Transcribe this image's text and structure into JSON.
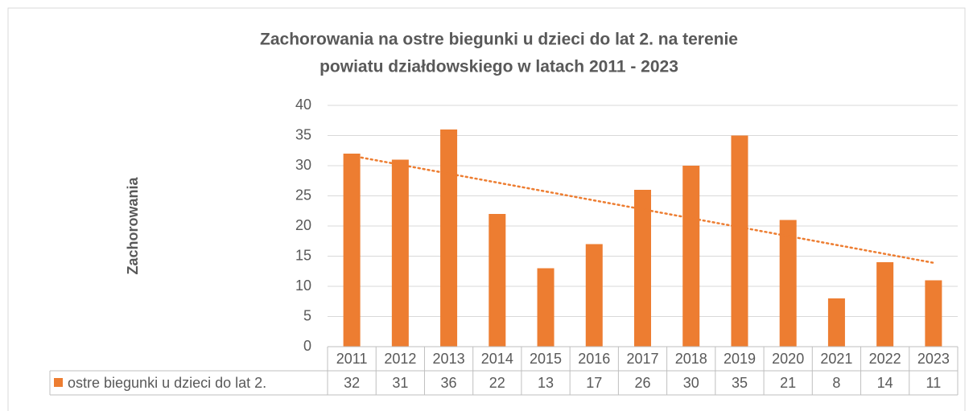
{
  "chart_data": {
    "type": "bar",
    "title": [
      "Zachorowania na ostre biegunki u dzieci do lat 2. na terenie",
      "powiatu działdowskiego w latach 2011 - 2023"
    ],
    "y_label": "Zachorowania",
    "categories": [
      "2011",
      "2012",
      "2013",
      "2014",
      "2015",
      "2016",
      "2017",
      "2018",
      "2019",
      "2020",
      "2021",
      "2022",
      "2023"
    ],
    "series": [
      {
        "name": "ostre biegunki u dzieci do lat 2.",
        "color": "#ed7d31",
        "values": [
          32,
          31,
          36,
          22,
          13,
          17,
          26,
          30,
          35,
          21,
          8,
          14,
          11
        ]
      }
    ],
    "ylim": [
      0,
      40
    ],
    "yticks": [
      0,
      5,
      10,
      15,
      20,
      25,
      30,
      35,
      40
    ],
    "grid": true,
    "trendline": "linear",
    "data_table": true
  }
}
